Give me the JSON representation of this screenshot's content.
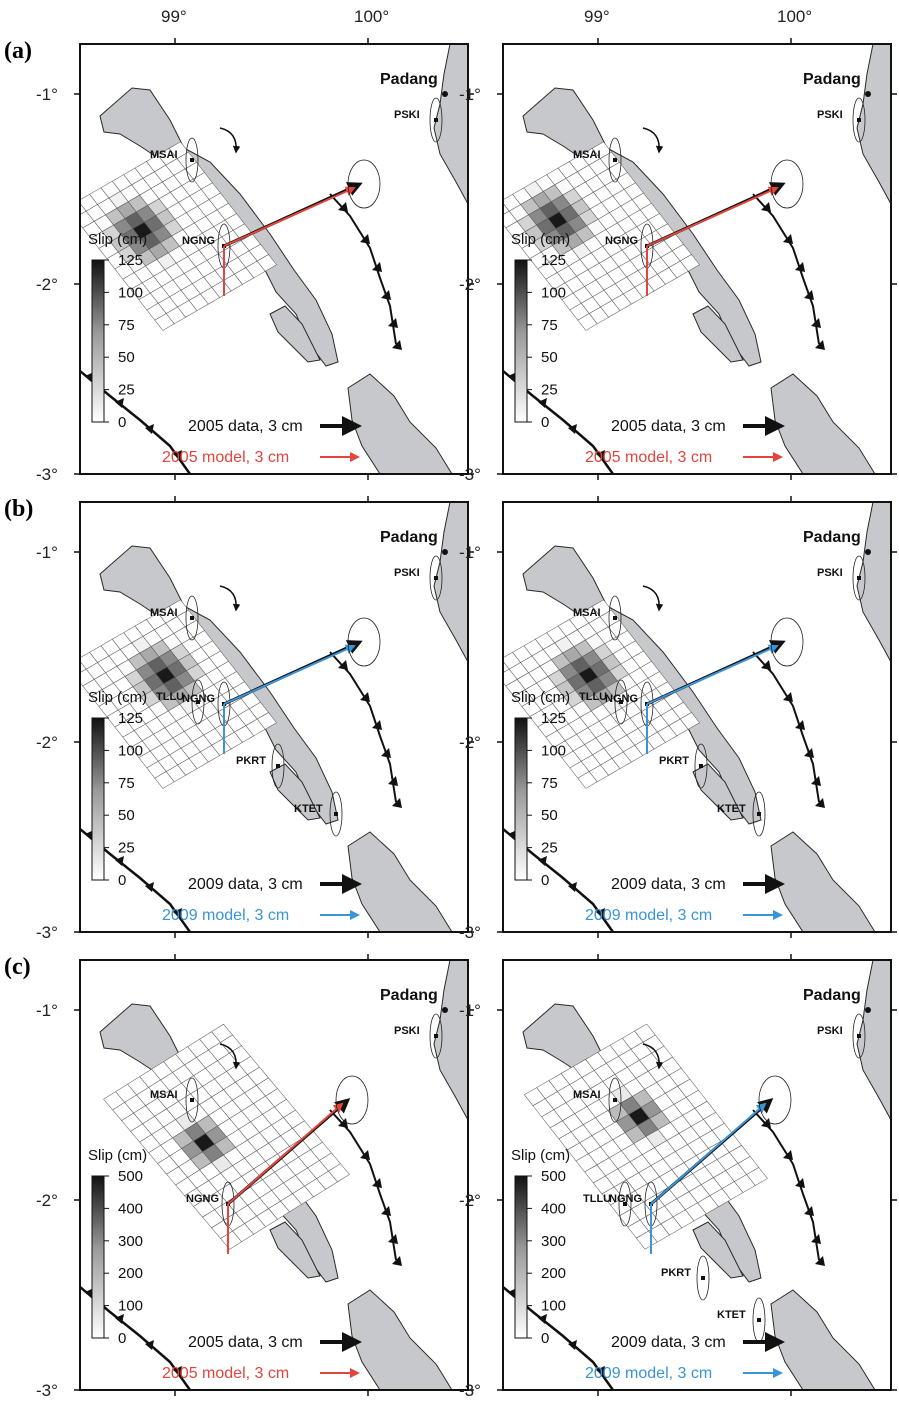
{
  "axes": {
    "lon_labels": [
      "99°",
      "100°"
    ],
    "lat_labels": [
      "-1°",
      "-2°",
      "-3°"
    ]
  },
  "city": {
    "name": "Padang"
  },
  "colors": {
    "land": "#c6c8cc",
    "coast": "#2a2a2a",
    "data_arrow": "#111111",
    "model_2005": "#e2453c",
    "model_2009": "#3a94d6"
  },
  "icons": {
    "data": "arrow-icon",
    "city": "dot-icon",
    "trench": "triangle-icon"
  },
  "panels": [
    {
      "row_label": "(a)",
      "stations": [
        "MSAI",
        "NGNG",
        "PSKI"
      ],
      "slip_title": "Slip (cm)",
      "slip_ticks": [
        "125",
        "100",
        "75",
        "50",
        "25",
        "0"
      ],
      "slip_max": 125,
      "legend_data": "2005 data, 3 cm",
      "legend_model": "2005 model, 3 cm",
      "model_color": "#e2453c",
      "peak_slip": 125
    },
    {
      "row_label": "(b)",
      "stations": [
        "MSAI",
        "TLLU",
        "NGNG",
        "PKRT",
        "KTET",
        "PSKI"
      ],
      "slip_title": "Slip (cm)",
      "slip_ticks": [
        "125",
        "100",
        "75",
        "50",
        "25",
        "0"
      ],
      "slip_max": 125,
      "legend_data": "2009 data, 3 cm",
      "legend_model": "2009 model, 3 cm",
      "model_color": "#3a94d6",
      "peak_slip": 120
    },
    {
      "row_label": "(c)",
      "stations": [
        "MSAI",
        "NGNG",
        "PSKI"
      ],
      "stations_right": [
        "MSAI",
        "TLLU",
        "NGNG",
        "PKRT",
        "KTET",
        "PSKI"
      ],
      "slip_title": "Slip (cm)",
      "slip_ticks": [
        "500",
        "400",
        "300",
        "200",
        "100",
        "0"
      ],
      "slip_max": 500,
      "legend_data": "2005 data, 3 cm",
      "legend_model": "2005 model, 3 cm",
      "legend_data_right": "2009 data, 3 cm",
      "legend_model_right": "2009 model, 3 cm",
      "model_color": "#e2453c",
      "model_color_right": "#3a94d6",
      "peak_slip": 500
    }
  ]
}
